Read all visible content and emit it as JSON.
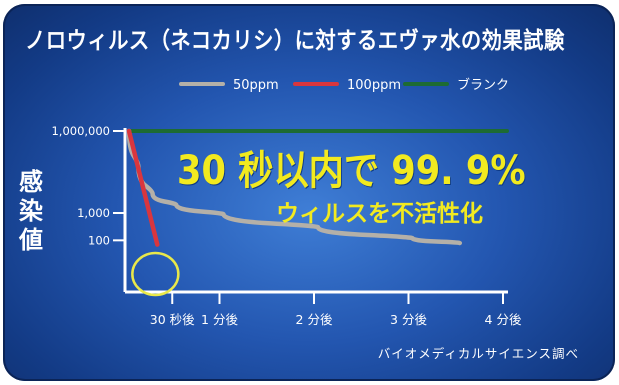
{
  "title": "ノロウィルス（ネコカリシ）に対するエヴァ水の効果試験",
  "headline": "30 秒以内で 99. 9%",
  "subheadline": "ウィルスを不活性化",
  "caption": "バイオメディカルサイエンス調べ",
  "colors": {
    "background": "#2a5fb8",
    "series_50ppm": "#b4b0a8",
    "series_100ppm": "#d9363e",
    "series_blank": "#1d6b33",
    "highlight_text": "#f2ea1f",
    "circle_marker": "#e9e84a"
  },
  "chart_data": {
    "type": "line",
    "title": "ノロウィルス（ネコカリシ）に対するエヴァ水の効果試験",
    "ylabel": "感染値",
    "xlabel": "",
    "x_ticks": [
      "30 秒後",
      "1 分後",
      "2 分後",
      "3 分後",
      "4 分後"
    ],
    "x_tick_values": [
      0.5,
      1,
      2,
      3,
      4
    ],
    "y_ticks": [
      "1,000,000",
      "1,000",
      "100"
    ],
    "y_tick_values": [
      1000000,
      1000,
      100
    ],
    "x_unit": "minutes",
    "y_scale": "log",
    "xlim": [
      0,
      4
    ],
    "legend_position": "top",
    "series": [
      {
        "name": "50ppm",
        "x": [
          0,
          0.1,
          0.25,
          0.5,
          1,
          2,
          3,
          3.5
        ],
        "y": [
          1000000,
          50000,
          5000,
          2000,
          900,
          300,
          120,
          80
        ]
      },
      {
        "name": "100ppm",
        "x": [
          0,
          0.3
        ],
        "y": [
          1000000,
          70
        ]
      },
      {
        "name": "ブランク",
        "x": [
          0,
          4
        ],
        "y": [
          1000000,
          1000000
        ]
      }
    ]
  }
}
